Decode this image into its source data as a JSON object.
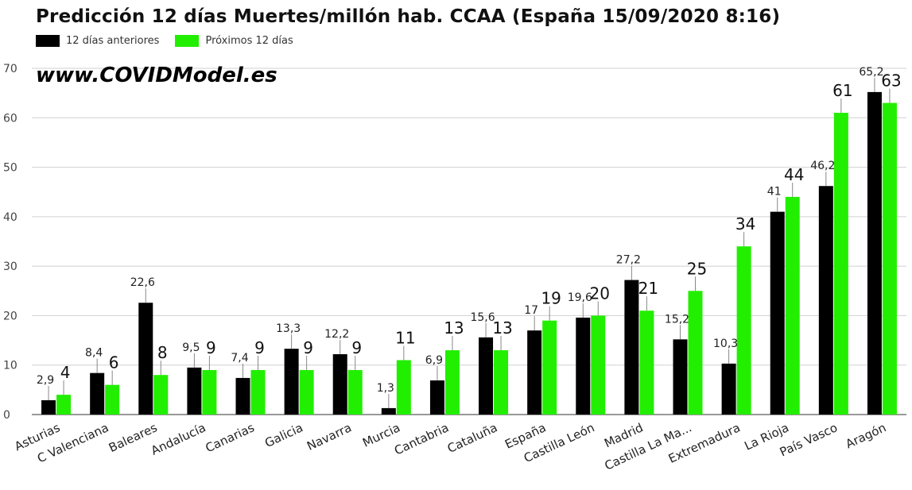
{
  "title": "Predicción 12 días Muertes/millón hab. CCAA (España 15/09/2020 8:16)",
  "watermark": "www.COVIDModel.es",
  "colors": {
    "previous": "#000000",
    "next": "#22ee00",
    "grid": "#d0d0d0",
    "axis": "#333333"
  },
  "chart_data": {
    "type": "bar",
    "title": "Predicción 12 días Muertes/millón hab. CCAA (España 15/09/2020 8:16)",
    "xlabel": "",
    "ylabel": "",
    "ylim": [
      0,
      70
    ],
    "yticks": [
      "0",
      "10",
      "20",
      "30",
      "40",
      "50",
      "60",
      "70"
    ],
    "grid": true,
    "legend": "top-left",
    "categories": [
      "Asturias",
      "C Valenciana",
      "Baleares",
      "Andalucía",
      "Canarias",
      "Galicia",
      "Navarra",
      "Murcia",
      "Cantabria",
      "Cataluña",
      "España",
      "Castilla León",
      "Madrid",
      "Castilla La Ma...",
      "Extremadura",
      "La Rioja",
      "País Vasco",
      "Aragón"
    ],
    "series": [
      {
        "name": "12 días anteriores",
        "values": [
          2.9,
          8.4,
          22.6,
          9.5,
          7.4,
          13.3,
          12.2,
          1.3,
          6.9,
          15.6,
          17,
          19.6,
          27.2,
          15.2,
          10.3,
          41,
          46.2,
          65.2
        ],
        "labels": [
          "2,9",
          "8,4",
          "22,6",
          "9,5",
          "7,4",
          "13,3",
          "12,2",
          "1,3",
          "6,9",
          "15,6",
          "17",
          "19,6",
          "27,2",
          "15,2",
          "10,3",
          "41",
          "46,2",
          "65,2"
        ]
      },
      {
        "name": "Próximos 12 días",
        "values": [
          4,
          6,
          8,
          9,
          9,
          9,
          9,
          11,
          13,
          13,
          19,
          20,
          21,
          25,
          34,
          44,
          61,
          63
        ],
        "labels": [
          "4",
          "6",
          "8",
          "9",
          "9",
          "9",
          "9",
          "11",
          "13",
          "13",
          "19",
          "20",
          "21",
          "25",
          "34",
          "44",
          "61",
          "63"
        ]
      }
    ]
  }
}
